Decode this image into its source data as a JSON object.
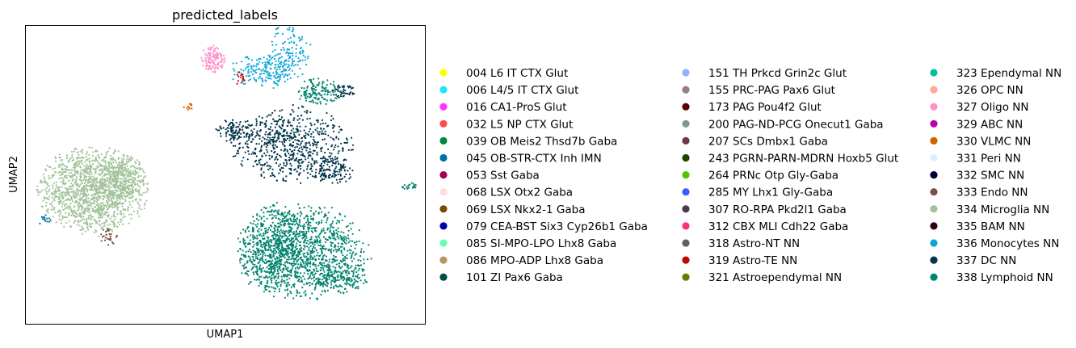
{
  "chart_data": {
    "type": "scatter",
    "title": "predicted_labels",
    "xlabel": "UMAP1",
    "ylabel": "UMAP2",
    "xlim": [
      -11.0,
      20.0
    ],
    "ylim": [
      -8.8,
      12.0
    ],
    "grid": false,
    "ticks": false,
    "legend_placement": "right",
    "legend_columns": 3,
    "series": [
      {
        "name": "004 L6 IT CTX Glut",
        "color": "#ffff00"
      },
      {
        "name": "006 L4/5 IT CTX Glut",
        "color": "#1ce6ff"
      },
      {
        "name": "016 CA1-ProS Glut",
        "color": "#ff34ff"
      },
      {
        "name": "032 L5 NP CTX Glut",
        "color": "#ff4a46"
      },
      {
        "name": "039 OB Meis2 Thsd7b Gaba",
        "color": "#008941"
      },
      {
        "name": "045 OB-STR-CTX Inh IMN",
        "color": "#006fa6"
      },
      {
        "name": "053 Sst Gaba",
        "color": "#a30059"
      },
      {
        "name": "068 LSX Otx2 Gaba",
        "color": "#ffdbe5"
      },
      {
        "name": "069 LSX Nkx2-1 Gaba",
        "color": "#7a4900"
      },
      {
        "name": "079 CEA-BST Six3 Cyp26b1 Gaba",
        "color": "#0000a6"
      },
      {
        "name": "085 SI-MPO-LPO Lhx8 Gaba",
        "color": "#63ffac"
      },
      {
        "name": "086 MPO-ADP Lhx8 Gaba",
        "color": "#b79762"
      },
      {
        "name": "101 ZI Pax6 Gaba",
        "color": "#004d43"
      },
      {
        "name": "151 TH Prkcd Grin2c Glut",
        "color": "#8fb0ff"
      },
      {
        "name": "155 PRC-PAG Pax6 Glut",
        "color": "#997d87"
      },
      {
        "name": "173 PAG Pou4f2 Glut",
        "color": "#5a0007"
      },
      {
        "name": "200 PAG-ND-PCG Onecut1 Gaba",
        "color": "#809693"
      },
      {
        "name": "207 SCs Dmbx1 Gaba",
        "color": "#6a3a4c"
      },
      {
        "name": "243 PGRN-PARN-MDRN Hoxb5 Glut",
        "color": "#1b4400"
      },
      {
        "name": "264 PRNc Otp Gly-Gaba",
        "color": "#4fc601"
      },
      {
        "name": "285 MY Lhx1 Gly-Gaba",
        "color": "#3b5dff"
      },
      {
        "name": "307 RO-RPA Pkd2l1 Gaba",
        "color": "#4a3b53"
      },
      {
        "name": "312 CBX MLI Cdh22 Gaba",
        "color": "#ff2f80"
      },
      {
        "name": "318 Astro-NT NN",
        "color": "#61615a"
      },
      {
        "name": "319 Astro-TE NN",
        "color": "#ba0900"
      },
      {
        "name": "321 Astroependymal NN",
        "color": "#6b7900"
      },
      {
        "name": "323 Ependymal NN",
        "color": "#00c2a0"
      },
      {
        "name": "326 OPC NN",
        "color": "#ffaa92"
      },
      {
        "name": "327 Oligo NN",
        "color": "#ff90c9"
      },
      {
        "name": "329 ABC NN",
        "color": "#b903aa"
      },
      {
        "name": "330 VLMC NN",
        "color": "#d16100"
      },
      {
        "name": "331 Peri NN",
        "color": "#ddefff"
      },
      {
        "name": "332 SMC NN",
        "color": "#000035"
      },
      {
        "name": "333 Endo NN",
        "color": "#7b4f4b"
      },
      {
        "name": "334 Microglia NN",
        "color": "#a1c299"
      },
      {
        "name": "335 BAM NN",
        "color": "#300018"
      },
      {
        "name": "336 Monocytes NN",
        "color": "#0aa6d8"
      },
      {
        "name": "337 DC NN",
        "color": "#013349"
      },
      {
        "name": "338 Lymphoid NN",
        "color": "#00846f"
      }
    ],
    "clusters": [
      {
        "series": "334 Microglia NN",
        "cx": -5.8,
        "cy": 0.5,
        "rx": 2.2,
        "ry": 1.6,
        "n": 1400
      },
      {
        "series": "334 Microglia NN",
        "cx": -3.5,
        "cy": 1.2,
        "rx": 1.0,
        "ry": 0.9,
        "n": 250
      },
      {
        "series": "338 Lymphoid NN",
        "cx": 10.7,
        "cy": -3.8,
        "rx": 2.6,
        "ry": 1.7,
        "n": 1100
      },
      {
        "series": "338 Lymphoid NN",
        "cx": 8.2,
        "cy": -3.6,
        "rx": 1.4,
        "ry": 1.7,
        "n": 500
      },
      {
        "series": "338 Lymphoid NN",
        "cx": 13.3,
        "cy": -5.7,
        "rx": 1.2,
        "ry": 0.5,
        "n": 160
      },
      {
        "series": "338 Lymphoid NN",
        "cx": 11.8,
        "cy": 7.4,
        "rx": 0.9,
        "ry": 0.5,
        "n": 140
      },
      {
        "series": "338 Lymphoid NN",
        "cx": 18.8,
        "cy": 0.8,
        "rx": 0.3,
        "ry": 0.15,
        "n": 20
      },
      {
        "series": "337 DC NN",
        "cx": 9.5,
        "cy": 3.7,
        "rx": 2.5,
        "ry": 1.4,
        "n": 650
      },
      {
        "series": "337 DC NN",
        "cx": 5.2,
        "cy": 4.7,
        "rx": 0.8,
        "ry": 0.4,
        "n": 90
      },
      {
        "series": "337 DC NN",
        "cx": 12.8,
        "cy": 1.9,
        "rx": 0.9,
        "ry": 0.5,
        "n": 120
      },
      {
        "series": "337 DC NN",
        "cx": 13.6,
        "cy": 7.4,
        "rx": 0.5,
        "ry": 0.3,
        "n": 40
      },
      {
        "series": "336 Monocytes NN",
        "cx": 7.7,
        "cy": 8.8,
        "rx": 1.5,
        "ry": 0.6,
        "n": 200
      },
      {
        "series": "336 Monocytes NN",
        "cx": 9.6,
        "cy": 10.4,
        "rx": 0.8,
        "ry": 1.0,
        "n": 110
      },
      {
        "series": "327 Oligo NN",
        "cx": 3.6,
        "cy": 9.7,
        "rx": 0.5,
        "ry": 0.5,
        "n": 130
      },
      {
        "series": "319 Astro-TE NN",
        "cx": 5.7,
        "cy": 8.3,
        "rx": 0.2,
        "ry": 0.3,
        "n": 14
      },
      {
        "series": "330 VLMC NN",
        "cx": 1.6,
        "cy": 6.4,
        "rx": 0.18,
        "ry": 0.14,
        "n": 12
      },
      {
        "series": "045 OB-STR-CTX Inh IMN",
        "cx": -9.5,
        "cy": -1.5,
        "rx": 0.3,
        "ry": 0.3,
        "n": 14
      },
      {
        "series": "333 Endo NN",
        "cx": -4.5,
        "cy": -2.7,
        "rx": 0.35,
        "ry": 0.35,
        "n": 28
      }
    ]
  }
}
